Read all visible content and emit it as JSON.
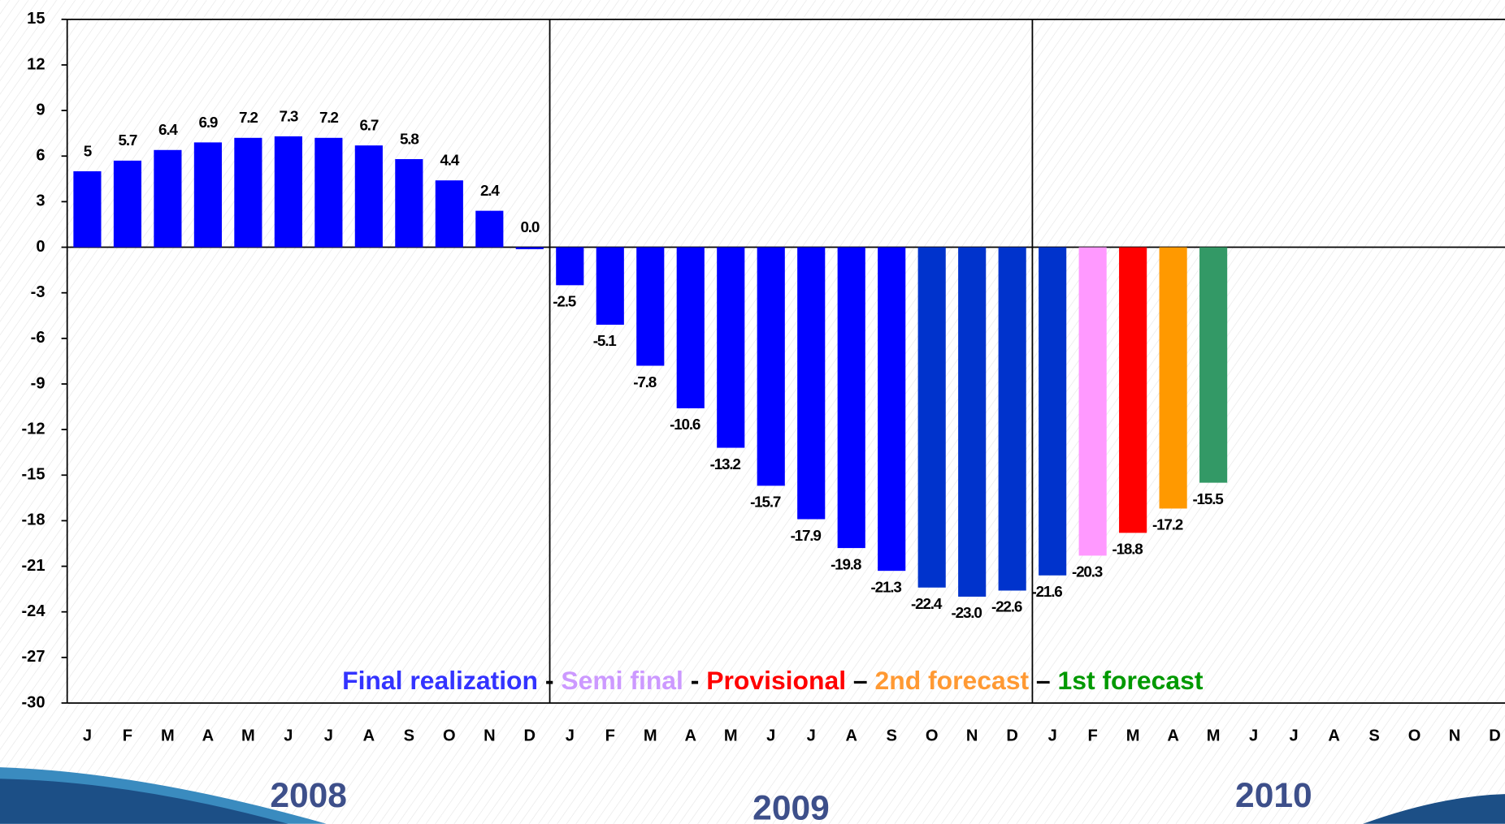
{
  "chart_data": {
    "type": "bar",
    "categories": [
      "J",
      "F",
      "M",
      "A",
      "M",
      "J",
      "J",
      "A",
      "S",
      "O",
      "N",
      "D",
      "J",
      "F",
      "M",
      "A",
      "M",
      "J",
      "J",
      "A",
      "S",
      "O",
      "N",
      "D",
      "J",
      "F",
      "M",
      "A",
      "M",
      "J",
      "J",
      "A",
      "S",
      "O",
      "N",
      "D"
    ],
    "values": [
      5,
      5.7,
      6.4,
      6.9,
      7.2,
      7.3,
      7.2,
      6.7,
      5.8,
      4.4,
      2.4,
      0.0,
      -2.5,
      -5.1,
      -7.8,
      -10.6,
      -13.2,
      -15.7,
      -17.9,
      -19.8,
      -21.3,
      -22.4,
      -23.0,
      -22.6,
      -21.6,
      -20.3,
      -18.8,
      -17.2,
      -15.5,
      null,
      null,
      null,
      null,
      null,
      null,
      null
    ],
    "value_labels": [
      "5",
      "5.7",
      "6.4",
      "6.9",
      "7.2",
      "7.3",
      "7.2",
      "6.7",
      "5.8",
      "4.4",
      "2.4",
      "0.0",
      "-2.5",
      "-5.1",
      "-7.8",
      "-10.6",
      "-13.2",
      "-15.7",
      "-17.9",
      "-19.8",
      "-21.3",
      "-22.4",
      "-23.0",
      "-22.6",
      "-21.6",
      "-20.3",
      "-18.8",
      "-17.2",
      "-15.5",
      null,
      null,
      null,
      null,
      null,
      null,
      null
    ],
    "colors": [
      "#0000ff",
      "#0000ff",
      "#0000ff",
      "#0000ff",
      "#0000ff",
      "#0000ff",
      "#0000ff",
      "#0000ff",
      "#0000ff",
      "#0000ff",
      "#0000ff",
      "#0000ff",
      "#0000ff",
      "#0000ff",
      "#0000ff",
      "#0000ff",
      "#0000ff",
      "#0000ff",
      "#0000ff",
      "#0000ff",
      "#0000ff",
      "#0033cc",
      "#0033cc",
      "#0033cc",
      "#0033cc",
      "#ff99ff",
      "#ff0000",
      "#ff9900",
      "#339966",
      null,
      null,
      null,
      null,
      null,
      null,
      null
    ],
    "ylim": [
      -30,
      15
    ],
    "yticks": [
      -30,
      -27,
      -24,
      -21,
      -18,
      -15,
      -12,
      -9,
      -6,
      -3,
      0,
      3,
      6,
      9,
      12,
      15
    ],
    "years": [
      "2008",
      "2009",
      "2010"
    ],
    "legend": [
      {
        "text": "Final realization",
        "color": "#3333ff"
      },
      {
        "text": " - ",
        "color": "#000000"
      },
      {
        "text": "Semi final",
        "color": "#cc99ff"
      },
      {
        "text": " - ",
        "color": "#000000"
      },
      {
        "text": "Provisional",
        "color": "#ff0000"
      },
      {
        "text": " – ",
        "color": "#000000"
      },
      {
        "text": "2nd forecast",
        "color": "#ff9933"
      },
      {
        "text": " – ",
        "color": "#000000"
      },
      {
        "text": "1st forecast",
        "color": "#009900"
      }
    ]
  }
}
